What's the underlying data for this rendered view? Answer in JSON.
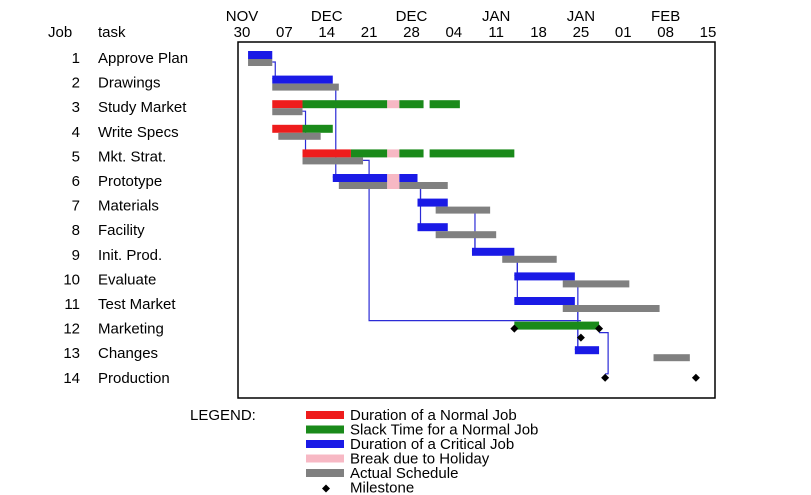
{
  "chart_data": {
    "type": "gantt",
    "headers": {
      "job": "Job",
      "task": "task"
    },
    "months": [
      {
        "label": "NOV",
        "date": "2023-11-30"
      },
      {
        "label": "DEC",
        "date": "2023-12-14"
      },
      {
        "label": "DEC",
        "date": "2023-12-28"
      },
      {
        "label": "JAN",
        "date": "2024-01-11"
      },
      {
        "label": "JAN",
        "date": "2024-01-25"
      },
      {
        "label": "FEB",
        "date": "2024-02-08"
      }
    ],
    "ticks": [
      {
        "label": "30",
        "date": "2023-11-30"
      },
      {
        "label": "07",
        "date": "2023-12-07"
      },
      {
        "label": "14",
        "date": "2023-12-14"
      },
      {
        "label": "21",
        "date": "2023-12-21"
      },
      {
        "label": "28",
        "date": "2023-12-28"
      },
      {
        "label": "04",
        "date": "2024-01-04"
      },
      {
        "label": "11",
        "date": "2024-01-11"
      },
      {
        "label": "18",
        "date": "2024-01-18"
      },
      {
        "label": "25",
        "date": "2024-01-25"
      },
      {
        "label": "01",
        "date": "2024-02-01"
      },
      {
        "label": "08",
        "date": "2024-02-08"
      },
      {
        "label": "15",
        "date": "2024-02-15"
      }
    ],
    "xlim": [
      "2023-11-30",
      "2024-02-15"
    ],
    "legend": {
      "title": "LEGEND:",
      "items": [
        {
          "label": "Duration of a Normal Job",
          "color": "#ee1c1c"
        },
        {
          "label": "Slack Time for a Normal Job",
          "color": "#1a8a1a"
        },
        {
          "label": "Duration of a Critical Job",
          "color": "#1a1ae6"
        },
        {
          "label": "Break due to Holiday",
          "color": "#f7b8c4"
        },
        {
          "label": "Actual Schedule",
          "color": "#808080"
        },
        {
          "label": "Milestone",
          "color": "#000000",
          "marker": "diamond"
        }
      ]
    },
    "jobs": [
      {
        "id": "1",
        "task": "Approve Plan",
        "bars": [
          {
            "kind": "critical",
            "start": "2023-12-01",
            "end": "2023-12-05"
          }
        ],
        "actual": [
          {
            "start": "2023-12-01",
            "end": "2023-12-05"
          }
        ]
      },
      {
        "id": "2",
        "task": "Drawings",
        "bars": [
          {
            "kind": "critical",
            "start": "2023-12-05",
            "end": "2023-12-15"
          }
        ],
        "actual": [
          {
            "start": "2023-12-05",
            "end": "2023-12-16"
          }
        ]
      },
      {
        "id": "3",
        "task": "Study Market",
        "bars": [
          {
            "kind": "normal",
            "start": "2023-12-05",
            "end": "2023-12-10"
          },
          {
            "kind": "slack",
            "start": "2023-12-10",
            "end": "2023-12-24"
          },
          {
            "kind": "holiday",
            "start": "2023-12-24",
            "end": "2023-12-26"
          },
          {
            "kind": "slack",
            "start": "2023-12-26",
            "end": "2023-12-30"
          },
          {
            "kind": "slack",
            "start": "2023-12-31",
            "end": "2024-01-05"
          }
        ],
        "actual": [
          {
            "start": "2023-12-05",
            "end": "2023-12-10"
          }
        ]
      },
      {
        "id": "4",
        "task": "Write Specs",
        "bars": [
          {
            "kind": "normal",
            "start": "2023-12-05",
            "end": "2023-12-10"
          },
          {
            "kind": "slack",
            "start": "2023-12-10",
            "end": "2023-12-15"
          }
        ],
        "actual": [
          {
            "start": "2023-12-06",
            "end": "2023-12-13"
          }
        ]
      },
      {
        "id": "5",
        "task": "Mkt. Strat.",
        "bars": [
          {
            "kind": "normal",
            "start": "2023-12-10",
            "end": "2023-12-18"
          },
          {
            "kind": "slack",
            "start": "2023-12-18",
            "end": "2023-12-24"
          },
          {
            "kind": "holiday",
            "start": "2023-12-24",
            "end": "2023-12-26"
          },
          {
            "kind": "slack",
            "start": "2023-12-26",
            "end": "2023-12-30"
          },
          {
            "kind": "slack",
            "start": "2023-12-31",
            "end": "2024-01-14"
          }
        ],
        "actual": [
          {
            "start": "2023-12-10",
            "end": "2023-12-20"
          }
        ]
      },
      {
        "id": "6",
        "task": "Prototype",
        "bars": [
          {
            "kind": "critical",
            "start": "2023-12-15",
            "end": "2023-12-24"
          },
          {
            "kind": "holiday",
            "start": "2023-12-24",
            "end": "2023-12-26"
          },
          {
            "kind": "critical",
            "start": "2023-12-26",
            "end": "2023-12-29"
          }
        ],
        "actual": [
          {
            "start": "2023-12-16",
            "end": "2023-12-24"
          },
          {
            "start": "2023-12-24",
            "end": "2023-12-26",
            "holiday": true
          },
          {
            "start": "2023-12-26",
            "end": "2024-01-03"
          }
        ]
      },
      {
        "id": "7",
        "task": "Materials",
        "bars": [
          {
            "kind": "critical",
            "start": "2023-12-29",
            "end": "2024-01-03"
          }
        ],
        "actual": [
          {
            "start": "2024-01-01",
            "end": "2024-01-10"
          }
        ]
      },
      {
        "id": "8",
        "task": "Facility",
        "bars": [
          {
            "kind": "critical",
            "start": "2023-12-29",
            "end": "2024-01-03"
          }
        ],
        "actual": [
          {
            "start": "2024-01-01",
            "end": "2024-01-11"
          }
        ]
      },
      {
        "id": "9",
        "task": "Init. Prod.",
        "bars": [
          {
            "kind": "critical",
            "start": "2024-01-07",
            "end": "2024-01-14"
          }
        ],
        "actual": [
          {
            "start": "2024-01-12",
            "end": "2024-01-21"
          }
        ]
      },
      {
        "id": "10",
        "task": "Evaluate",
        "bars": [
          {
            "kind": "critical",
            "start": "2024-01-14",
            "end": "2024-01-24"
          }
        ],
        "actual": [
          {
            "start": "2024-01-22",
            "end": "2024-02-02"
          }
        ]
      },
      {
        "id": "11",
        "task": "Test Market",
        "bars": [
          {
            "kind": "critical",
            "start": "2024-01-14",
            "end": "2024-01-24"
          }
        ],
        "actual": [
          {
            "start": "2024-01-22",
            "end": "2024-02-07"
          }
        ]
      },
      {
        "id": "12",
        "task": "Marketing",
        "bars": [
          {
            "kind": "slack",
            "start": "2024-01-14",
            "end": "2024-01-28"
          }
        ],
        "actual": [],
        "milestones": [
          "2024-01-14",
          "2024-01-28",
          "2024-01-25"
        ]
      },
      {
        "id": "13",
        "task": "Changes",
        "bars": [
          {
            "kind": "critical",
            "start": "2024-01-24",
            "end": "2024-01-28"
          }
        ],
        "actual": [
          {
            "start": "2024-02-06",
            "end": "2024-02-12"
          }
        ]
      },
      {
        "id": "14",
        "task": "Production",
        "bars": [],
        "actual": [],
        "milestones": [
          "2024-01-29",
          "2024-02-13"
        ]
      }
    ]
  }
}
